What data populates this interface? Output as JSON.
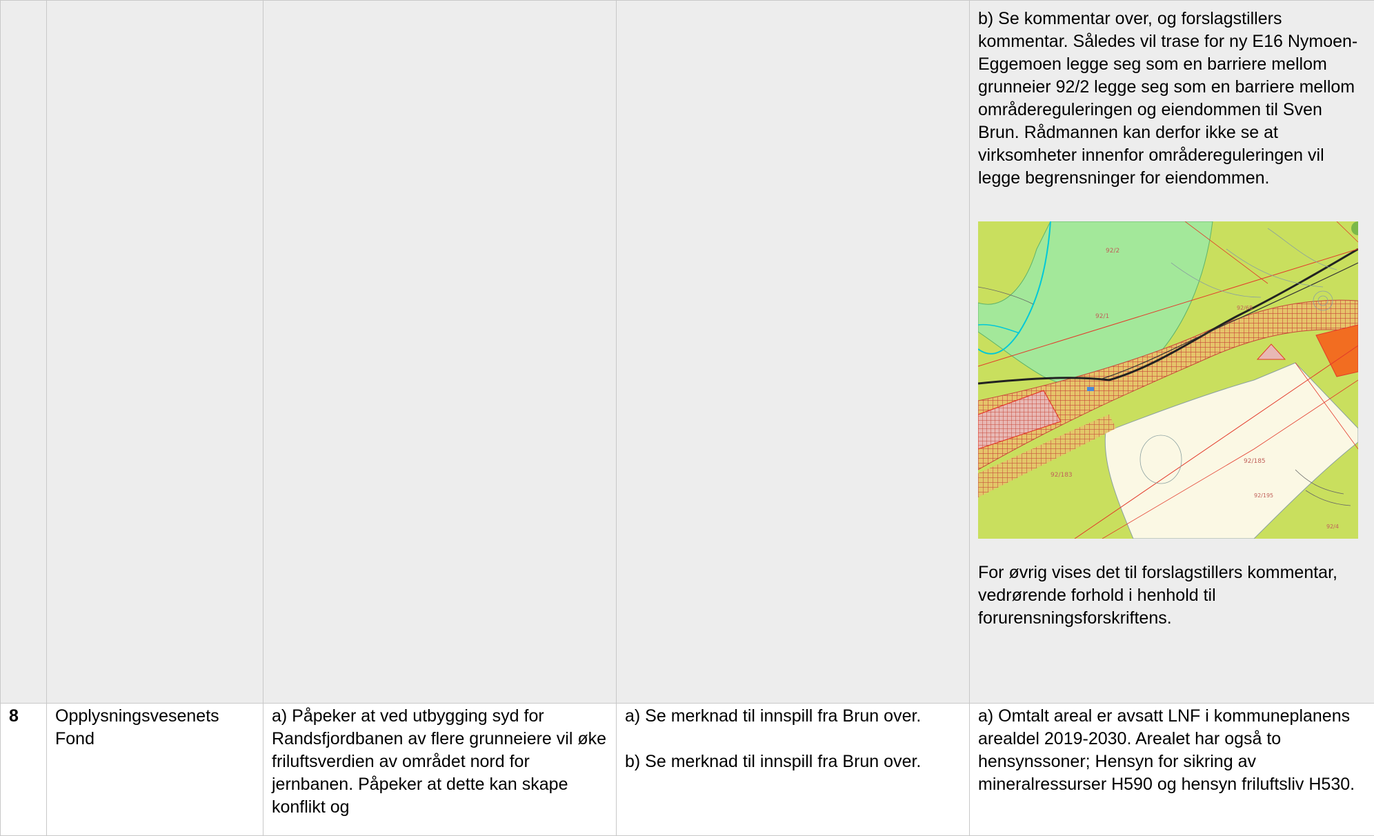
{
  "continuation_row": {
    "col5_para1": "b) Se kommentar over, og forslagstillers kommentar. Således vil trase for ny E16 Nymoen-Eggemoen legge seg som en barriere mellom grunneier 92/2 legge seg som en barriere mellom områdereguleringen og eiendommen til Sven Brun. Rådmannen kan derfor ikke se at virksomheter innenfor områdereguleringen vil legge begrensninger for eiendommen.",
    "map": {
      "labels": [
        "92/2",
        "92/1",
        "92/68",
        "92/185",
        "92/183",
        "92/4",
        "92/195"
      ],
      "colors": {
        "lnf": "#c9df5e",
        "green_area": "#a3e89a",
        "white_area": "#fbf8e4",
        "orange_zone": "#f26d21",
        "pink_zone": "#e8b8b4",
        "red_line": "#e33a2a",
        "hatch": "#c8473a"
      }
    },
    "col5_para2": "For øvrig vises det til forslagstillers kommentar, vedrørende forhold i henhold til forurensningsforskriftens."
  },
  "row_8": {
    "number": "8",
    "name": "Opplysningsvesenets Fond",
    "summary": "a) Påpeker at ved utbygging syd for Randsfjordbanen av flere grunneiere vil øke friluftsverdien av området nord for jernbanen. Påpeker at dette kan skape konflikt og",
    "proposer_a": "a) Se merknad til innspill fra Brun over.",
    "proposer_b": "b) Se merknad til innspill fra Brun over.",
    "admin": "a) Omtalt areal er avsatt LNF i kommuneplanens arealdel 2019-2030. Arealet har også to hensynssoner; Hensyn for sikring av mineralressurser H590 og hensyn friluftsliv H530."
  }
}
